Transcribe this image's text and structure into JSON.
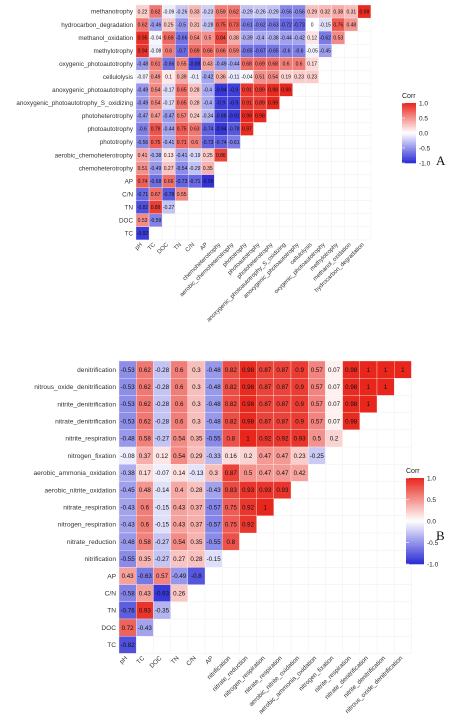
{
  "chart_data": [
    {
      "type": "heatmap",
      "panel_label": "A",
      "legend_title": "Corr",
      "legend_ticks": [
        "1.0",
        "0.5",
        "0.0",
        "-0.5",
        "-1.0"
      ],
      "value_range": [
        -1,
        1
      ],
      "colors": {
        "low": "#2a2ad6",
        "mid": "#ffffff",
        "high": "#e8261c"
      },
      "rows": [
        "methanotrophy",
        "hydrocarbon_degradation",
        "methanol_oxidation",
        "methylotrophy",
        "oxygenic_photoautotrophy",
        "cellulolysis",
        "anoxygenic_photoautotrophy",
        "anoxygenic_photoautotrophy_S_oxidizing",
        "photoheterotrophy",
        "photoautotrophy",
        "phototrophy",
        "aerobic_chemoheterotrophy",
        "chemoheterotrophy",
        "AP",
        "C/N",
        "TN",
        "DOC",
        "TC"
      ],
      "columns": [
        "pH",
        "TC",
        "DOC",
        "TN",
        "C/N",
        "AP",
        "chemoheterotrophy",
        "aerobic_chemoheterotrophy",
        "phototrophy",
        "photoautotrophy",
        "photoheterotrophy",
        "anoxygenic_photoautotrophy_S_oxidizing",
        "anoxygenic_photoautotrophy",
        "cellulolysis",
        "oxygenic_photoautotrophy",
        "methylotrophy",
        "methanol_oxidation",
        "hydrocarbon_degradation"
      ],
      "values": [
        [
          0.22,
          0.62,
          -0.09,
          -0.26,
          0.33,
          -0.23,
          0.59,
          0.62,
          -0.29,
          -0.26,
          -0.29,
          -0.56,
          -0.56,
          0.29,
          0.32,
          0.38,
          0.31,
          0.98
        ],
        [
          0.62,
          -0.46,
          0.25,
          -0.5,
          0.31,
          -0.28,
          0.75,
          0.73,
          -0.61,
          -0.62,
          -0.63,
          -0.72,
          -0.73,
          0,
          -0.15,
          0.76,
          0.48
        ],
        [
          0.95,
          -0.04,
          0.69,
          -0.66,
          0.54,
          0.5,
          0.84,
          0.38,
          -0.39,
          -0.4,
          -0.38,
          -0.44,
          -0.42,
          0.12,
          -0.62,
          0.53
        ],
        [
          0.94,
          -0.08,
          0.6,
          -0.7,
          0.69,
          0.66,
          0.66,
          0.59,
          -0.65,
          -0.67,
          -0.65,
          -0.6,
          -0.6,
          -0.05,
          -0.45
        ],
        [
          -0.48,
          0.61,
          -0.66,
          0.55,
          -0.88,
          0.43,
          -0.49,
          -0.44,
          0.68,
          0.69,
          0.68,
          0.6,
          0.6,
          0.17
        ],
        [
          -0.07,
          0.49,
          0.1,
          0.39,
          -0.1,
          -0.42,
          0.36,
          -0.11,
          -0.04,
          0.51,
          0.54,
          0.19,
          0.23,
          0.23
        ],
        [
          -0.49,
          0.54,
          -0.17,
          0.65,
          0.28,
          -0.4,
          -0.94,
          -0.9,
          0.91,
          0.89,
          0.98,
          0.99
        ],
        [
          -0.49,
          0.54,
          -0.17,
          0.65,
          0.28,
          -0.4,
          -0.9,
          -0.9,
          0.91,
          0.89,
          0.99
        ],
        [
          -0.47,
          0.47,
          -0.47,
          0.57,
          0.24,
          -0.34,
          -0.88,
          -0.91,
          0.99,
          0.98
        ],
        [
          -0.6,
          0.79,
          -0.44,
          0.75,
          0.63,
          -0.74,
          -0.94,
          -0.78,
          0.97
        ],
        [
          -0.56,
          0.75,
          -0.41,
          0.71,
          0.6,
          -0.73,
          -0.74,
          -0.61
        ],
        [
          0.41,
          -0.38,
          0.13,
          -0.41,
          -0.19,
          0.25,
          0.86
        ],
        [
          0.51,
          -0.49,
          0.27,
          -0.54,
          -0.29,
          0.35
        ],
        [
          0.74,
          -0.68,
          0.66,
          -0.73,
          -0.71,
          -0.96
        ],
        [
          -0.71,
          0.67,
          -0.78,
          0.55
        ],
        [
          -0.82,
          0.89,
          -0.27
        ],
        [
          0.53,
          -0.59
        ],
        [
          -0.92
        ]
      ]
    },
    {
      "type": "heatmap",
      "panel_label": "B",
      "legend_title": "Corr",
      "legend_ticks": [
        "1.0",
        "0.5",
        "0.0",
        "-0.5",
        "-1.0"
      ],
      "value_range": [
        -1,
        1
      ],
      "colors": {
        "low": "#2a2ad6",
        "mid": "#ffffff",
        "high": "#e8261c"
      },
      "rows": [
        "denitrification",
        "nitrous_oxide_denitrification",
        "nitrite_denitrification",
        "nitrate_denitrification",
        "nitrite_respiration",
        "nitrogen_fixation",
        "aerobic_ammonia_oxidation",
        "aerobic_nitrite_oxidation",
        "nitrate_respiration",
        "nitrogen_respiration",
        "nitrate_reduction",
        "nitrification",
        "AP",
        "C/N",
        "TN",
        "DOC",
        "TC"
      ],
      "columns": [
        "pH",
        "TC",
        "DOC",
        "TN",
        "C/N",
        "AP",
        "nitrification",
        "nitrate_reduction",
        "nitrogen_respiration",
        "nitrate_respiration",
        "aerobic_nitrite_oxidation",
        "aerobic_ammonia_oxidation",
        "nitrogen_fixation",
        "nitrite_respiration",
        "nitrate_denitrification",
        "nitrite_denitrification",
        "nitrous_oxide_denitrification"
      ],
      "values": [
        [
          -0.53,
          0.62,
          -0.28,
          0.6,
          0.3,
          -0.48,
          0.82,
          0.98,
          0.87,
          0.87,
          0.9,
          0.57,
          0.07,
          0.98,
          1,
          1,
          1
        ],
        [
          -0.53,
          0.62,
          -0.28,
          0.6,
          0.3,
          -0.48,
          0.82,
          0.98,
          0.87,
          0.87,
          0.9,
          0.57,
          0.07,
          0.98,
          1,
          1
        ],
        [
          -0.53,
          0.62,
          -0.28,
          0.6,
          0.3,
          -0.48,
          0.82,
          0.98,
          0.87,
          0.87,
          0.9,
          0.57,
          0.07,
          0.98,
          1
        ],
        [
          -0.53,
          0.62,
          -0.28,
          0.6,
          0.3,
          -0.48,
          0.82,
          0.98,
          0.87,
          0.87,
          0.9,
          0.57,
          0.07,
          0.98
        ],
        [
          -0.48,
          0.58,
          -0.27,
          0.54,
          0.35,
          -0.55,
          0.8,
          1,
          0.92,
          0.92,
          0.93,
          0.5,
          0.2
        ],
        [
          -0.08,
          0.37,
          0.12,
          0.54,
          0.29,
          -0.33,
          0.16,
          0.2,
          0.47,
          0.47,
          0.23,
          -0.25
        ],
        [
          -0.38,
          0.17,
          -0.07,
          0.14,
          -0.13,
          0.3,
          0.87,
          0.5,
          0.47,
          0.47,
          0.42
        ],
        [
          -0.45,
          0.48,
          -0.14,
          0.4,
          0.28,
          -0.43,
          0.83,
          0.93,
          0.93,
          0.93
        ],
        [
          -0.43,
          0.6,
          -0.15,
          0.43,
          0.37,
          -0.57,
          0.75,
          0.92,
          1
        ],
        [
          -0.43,
          0.6,
          -0.15,
          0.43,
          0.37,
          -0.57,
          0.75,
          0.92
        ],
        [
          -0.48,
          0.58,
          -0.27,
          0.54,
          0.35,
          -0.55,
          0.8
        ],
        [
          -0.55,
          0.35,
          -0.27,
          0.27,
          0.28,
          -0.15
        ],
        [
          0.43,
          -0.63,
          0.57,
          -0.49,
          -0.8
        ],
        [
          -0.58,
          0.43,
          -0.93,
          0.26
        ],
        [
          -0.76,
          0.93,
          -0.35
        ],
        [
          0.72,
          -0.43
        ],
        [
          -0.82
        ]
      ]
    }
  ]
}
